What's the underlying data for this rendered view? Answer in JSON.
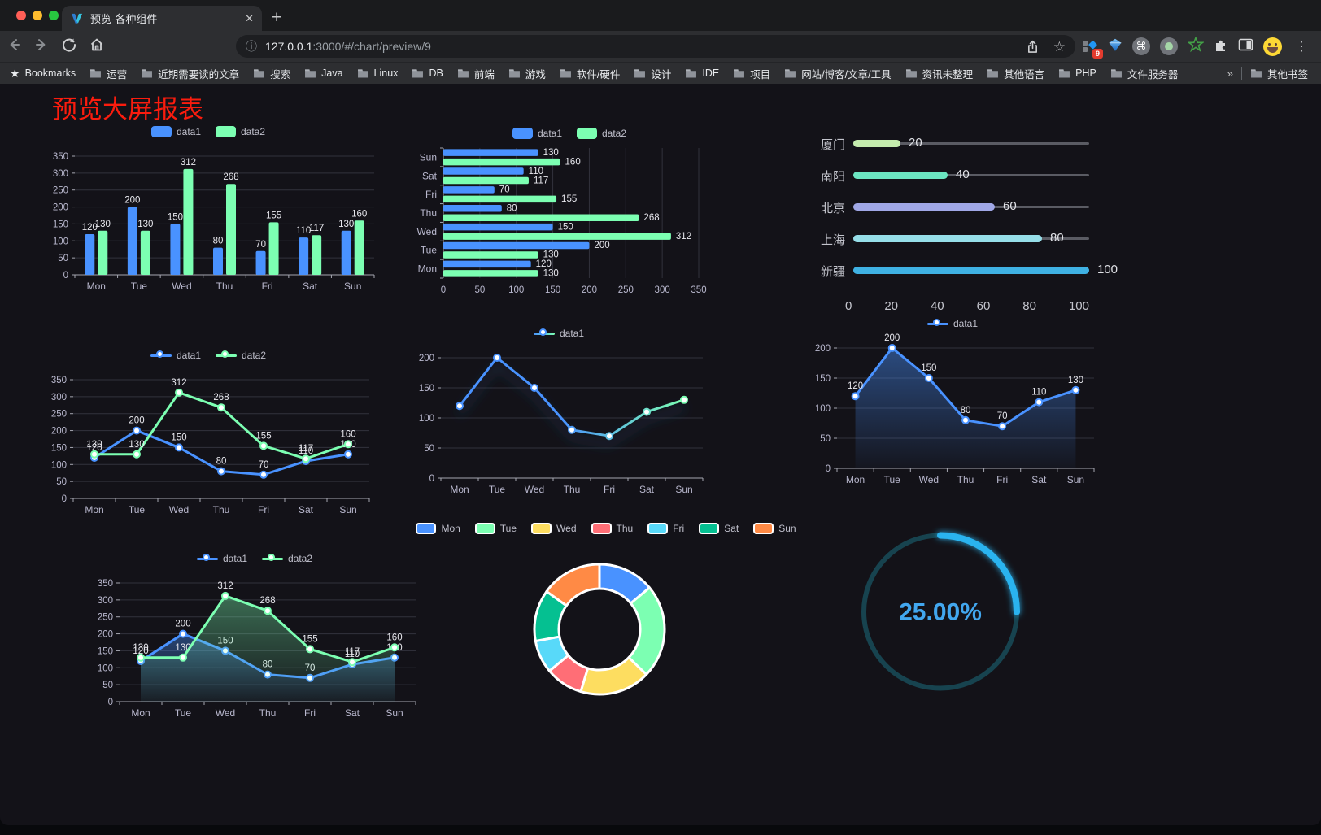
{
  "browser": {
    "traffic_lights": [
      "#ff5f57",
      "#febc2e",
      "#28c840"
    ],
    "tab_title": "预览-各种组件",
    "tab_close": "✕",
    "newtab": "+",
    "url_info": "ⓘ",
    "url_host": "127.0.0.1",
    "url_rest": ":3000/#/chart/preview/9",
    "bookmarks_label": "Bookmarks",
    "bookmarks": [
      "运营",
      "近期需要读的文章",
      "搜索",
      "Java",
      "Linux",
      "DB",
      "前端",
      "游戏",
      "软件/硬件",
      "设计",
      "IDE",
      "项目",
      "网站/博客/文章/工具",
      "资讯未整理",
      "其他语言",
      "PHP",
      "文件服务器"
    ],
    "overflow": "»",
    "other_bookmarks": "其他书签",
    "extension_badge": "9",
    "command_glyph": "⌘",
    "menu_glyph": "⋮"
  },
  "page": {
    "title": "预览大屏报表"
  },
  "chart_data": [
    {
      "id": "bar-vertical",
      "type": "bar",
      "orientation": "vertical",
      "categories": [
        "Mon",
        "Tue",
        "Wed",
        "Thu",
        "Fri",
        "Sat",
        "Sun"
      ],
      "series": [
        {
          "name": "data1",
          "color": "#4992ff",
          "values": [
            120,
            200,
            150,
            80,
            70,
            110,
            130
          ]
        },
        {
          "name": "data2",
          "color": "#7cffb2",
          "values": [
            130,
            130,
            312,
            268,
            155,
            117,
            160
          ]
        }
      ],
      "ylim": [
        0,
        350
      ],
      "ytick_step": 50,
      "value_labels": true,
      "grid": true,
      "legend_position": "top"
    },
    {
      "id": "bar-horizontal",
      "type": "bar",
      "orientation": "horizontal",
      "categories": [
        "Mon",
        "Tue",
        "Wed",
        "Thu",
        "Fri",
        "Sat",
        "Sun"
      ],
      "series": [
        {
          "name": "data1",
          "color": "#4992ff",
          "values": [
            120,
            200,
            150,
            80,
            70,
            110,
            130
          ]
        },
        {
          "name": "data2",
          "color": "#7cffb2",
          "values": [
            130,
            130,
            312,
            268,
            155,
            117,
            160
          ]
        }
      ],
      "xlim": [
        0,
        350
      ],
      "xtick_step": 50,
      "value_labels": true,
      "grid": true,
      "legend_position": "top"
    },
    {
      "id": "progress",
      "type": "progress",
      "rows": [
        {
          "label": "厦门",
          "value": 20,
          "color": "#c4ebad"
        },
        {
          "label": "南阳",
          "value": 40,
          "color": "#6be6c1"
        },
        {
          "label": "北京",
          "value": 60,
          "color": "#a0a7e6"
        },
        {
          "label": "上海",
          "value": 80,
          "color": "#96dee8"
        },
        {
          "label": "新疆",
          "value": 100,
          "color": "#3fb1e3"
        }
      ],
      "xlim": [
        0,
        100
      ],
      "xticks": [
        0,
        20,
        40,
        60,
        80,
        100
      ]
    },
    {
      "id": "line-dual",
      "type": "line",
      "categories": [
        "Mon",
        "Tue",
        "Wed",
        "Thu",
        "Fri",
        "Sat",
        "Sun"
      ],
      "series": [
        {
          "name": "data1",
          "color": "#4992ff",
          "values": [
            120,
            200,
            150,
            80,
            70,
            110,
            130
          ]
        },
        {
          "name": "data2",
          "color": "#7cffb2",
          "values": [
            130,
            130,
            312,
            268,
            155,
            117,
            160
          ]
        }
      ],
      "ylim": [
        0,
        350
      ],
      "ytick_step": 50,
      "value_labels": true,
      "grid": true,
      "legend_position": "top"
    },
    {
      "id": "line-gradient",
      "type": "line",
      "categories": [
        "Mon",
        "Tue",
        "Wed",
        "Thu",
        "Fri",
        "Sat",
        "Sun"
      ],
      "series": [
        {
          "name": "data1",
          "gradient": [
            "#4992ff",
            "#7cffb2"
          ],
          "shadow": true,
          "values": [
            120,
            200,
            150,
            80,
            70,
            110,
            130
          ]
        }
      ],
      "ylim": [
        0,
        200
      ],
      "ytick_step": 50,
      "value_labels": false,
      "grid": true,
      "legend_position": "top"
    },
    {
      "id": "line-area",
      "type": "line",
      "categories": [
        "Mon",
        "Tue",
        "Wed",
        "Thu",
        "Fri",
        "Sat",
        "Sun"
      ],
      "series": [
        {
          "name": "data1",
          "color": "#4992ff",
          "area": {
            "from": "rgba(73,146,255,0.45)",
            "to": "rgba(73,146,255,0.03)"
          },
          "values": [
            120,
            200,
            150,
            80,
            70,
            110,
            130
          ]
        }
      ],
      "ylim": [
        0,
        200
      ],
      "ytick_step": 50,
      "value_labels": true,
      "grid": true,
      "legend_position": "top"
    },
    {
      "id": "line-dual-area",
      "type": "line",
      "categories": [
        "Mon",
        "Tue",
        "Wed",
        "Thu",
        "Fri",
        "Sat",
        "Sun"
      ],
      "series": [
        {
          "name": "data1",
          "color": "#4992ff",
          "area": {
            "from": "rgba(73,146,255,0.40)",
            "to": "rgba(73,146,255,0.03)"
          },
          "values": [
            120,
            200,
            150,
            80,
            70,
            110,
            130
          ]
        },
        {
          "name": "data2",
          "color": "#7cffb2",
          "area": {
            "from": "rgba(124,255,178,0.38)",
            "to": "rgba(124,255,178,0.03)"
          },
          "values": [
            130,
            130,
            312,
            268,
            155,
            117,
            160
          ]
        }
      ],
      "ylim": [
        0,
        350
      ],
      "ytick_step": 50,
      "value_labels": true,
      "grid": true,
      "legend_position": "top"
    },
    {
      "id": "donut",
      "type": "donut",
      "legend_position": "top",
      "slices": [
        {
          "label": "Mon",
          "value": 120,
          "color": "#4992ff"
        },
        {
          "label": "Tue",
          "value": 200,
          "color": "#7cffb2"
        },
        {
          "label": "Wed",
          "value": 150,
          "color": "#fddd60"
        },
        {
          "label": "Thu",
          "value": 80,
          "color": "#ff6e76"
        },
        {
          "label": "Fri",
          "value": 70,
          "color": "#58d9f9"
        },
        {
          "label": "Sat",
          "value": 110,
          "color": "#05c091"
        },
        {
          "label": "Sun",
          "value": 130,
          "color": "#ff8a45"
        }
      ]
    },
    {
      "id": "gauge",
      "type": "gauge",
      "value": 25,
      "max": 100,
      "display": "25.00%",
      "color": "#2bb3ef",
      "track_color": "#17434f"
    }
  ]
}
